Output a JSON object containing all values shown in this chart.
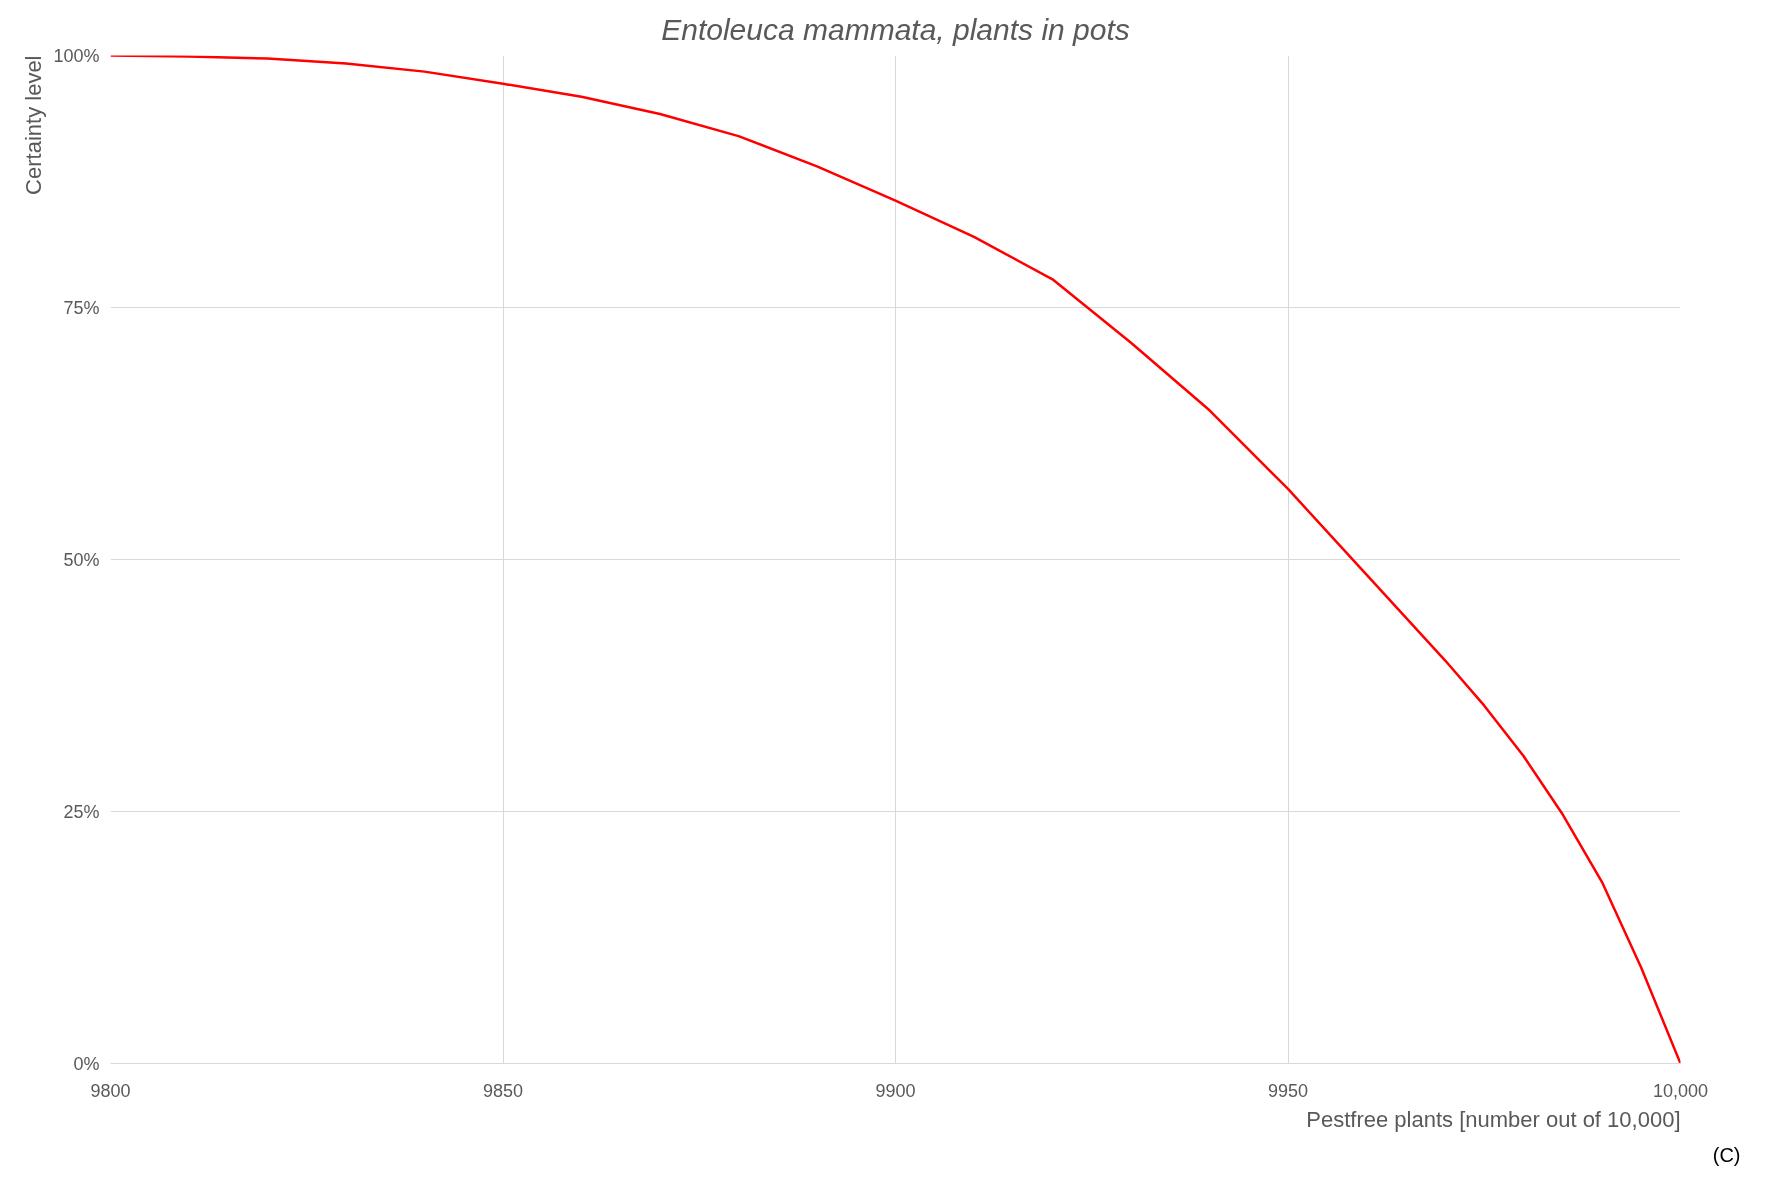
{
  "chart_data": {
    "type": "line",
    "title": "Entoleuca mammata, plants in pots",
    "xlabel": "Pestfree plants [number out of 10,000]",
    "ylabel": "Certainty level",
    "x": [
      9800,
      9810,
      9820,
      9830,
      9840,
      9850,
      9860,
      9870,
      9880,
      9890,
      9900,
      9910,
      9920,
      9930,
      9940,
      9950,
      9960,
      9970,
      9975,
      9980,
      9985,
      9990,
      9995,
      10000
    ],
    "series": [
      {
        "color": "#ff0000",
        "values": [
          100,
          99.9,
          99.7,
          99.2,
          98.4,
          97.2,
          95.9,
          94.2,
          92.0,
          89.0,
          85.6,
          82.0,
          77.8,
          71.5,
          64.8,
          57.0,
          48.5,
          40.0,
          35.5,
          30.5,
          24.7,
          18.0,
          9.5,
          0
        ]
      }
    ],
    "xlim": [
      9800,
      10000
    ],
    "xticks": [
      9800,
      9850,
      9900,
      9950,
      {
        "value": 10000,
        "label": "10,000"
      }
    ],
    "ylim": [
      0,
      100
    ],
    "yticks": [
      {
        "value": 0,
        "label": "0%"
      },
      {
        "value": 25,
        "label": "25%"
      },
      {
        "value": 50,
        "label": "50%"
      },
      {
        "value": 75,
        "label": "75%"
      },
      {
        "value": 100,
        "label": "100%"
      }
    ],
    "grid": true,
    "marker": "none",
    "line_style": "solid",
    "annotations": [
      "(C)"
    ]
  }
}
